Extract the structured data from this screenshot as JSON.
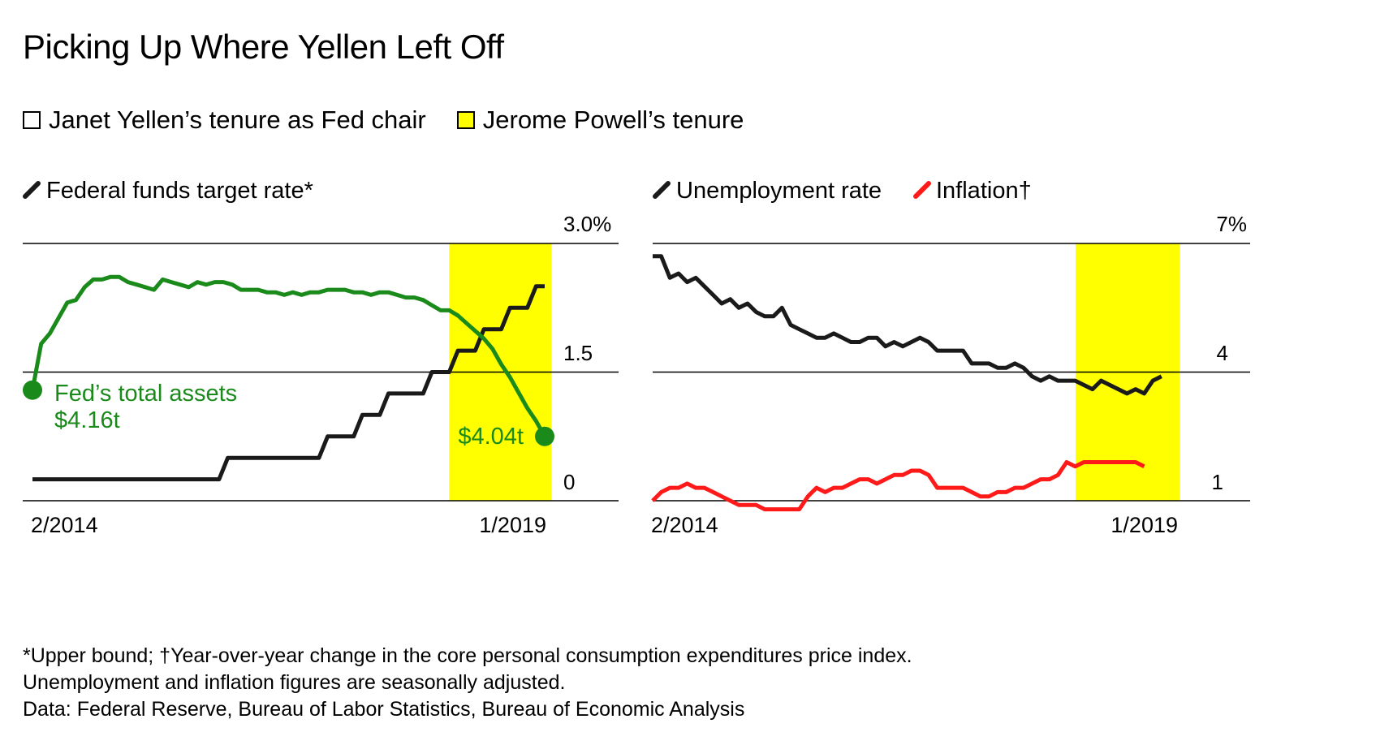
{
  "title": "Picking Up Where Yellen Left Off",
  "legend": [
    {
      "label": "Janet Yellen’s tenure as Fed chair",
      "color": "#ffffff"
    },
    {
      "label": "Jerome Powell’s tenure",
      "color": "#ffff00"
    }
  ],
  "colors": {
    "black": "#1a1a1a",
    "green": "#1a8a1a",
    "red": "#ff1a1a",
    "highlight": "#ffff00",
    "axis": "#000000"
  },
  "chart_data": [
    {
      "type": "line",
      "title": "Federal funds target rate*",
      "x_tick_labels": [
        "2/2014",
        "1/2019"
      ],
      "y_tick_labels": [
        "0",
        "1.5",
        "3.0%"
      ],
      "ylim": [
        0,
        3.0
      ],
      "x_range_months": [
        0,
        59
      ],
      "highlight_months": [
        48,
        60
      ],
      "series": [
        {
          "name": "Federal funds target rate*",
          "color": "#1a1a1a",
          "points": [
            [
              0,
              0.25
            ],
            [
              21.5,
              0.25
            ],
            [
              22.5,
              0.5
            ],
            [
              33,
              0.5
            ],
            [
              34,
              0.75
            ],
            [
              37,
              0.75
            ],
            [
              38,
              1.0
            ],
            [
              40,
              1.0
            ],
            [
              41,
              1.25
            ],
            [
              45,
              1.25
            ],
            [
              46,
              1.5
            ],
            [
              48,
              1.5
            ],
            [
              49,
              1.75
            ],
            [
              51,
              1.75
            ],
            [
              52,
              2.0
            ],
            [
              54,
              2.0
            ],
            [
              55,
              2.25
            ],
            [
              57,
              2.25
            ],
            [
              58,
              2.5
            ],
            [
              59,
              2.5
            ]
          ]
        },
        {
          "name": "Fed’s total assets",
          "color": "#1a8a1a",
          "y_fraction": [
            0.43,
            0.61,
            0.65,
            0.71,
            0.77,
            0.78,
            0.83,
            0.86,
            0.86,
            0.87,
            0.87,
            0.85,
            0.84,
            0.83,
            0.82,
            0.86,
            0.85,
            0.84,
            0.83,
            0.85,
            0.84,
            0.85,
            0.85,
            0.84,
            0.82,
            0.82,
            0.82,
            0.81,
            0.81,
            0.8,
            0.81,
            0.8,
            0.81,
            0.81,
            0.82,
            0.82,
            0.82,
            0.81,
            0.81,
            0.8,
            0.81,
            0.81,
            0.8,
            0.79,
            0.79,
            0.78,
            0.76,
            0.74,
            0.74,
            0.72,
            0.69,
            0.66,
            0.63,
            0.59,
            0.53,
            0.48,
            0.42,
            0.36,
            0.31,
            0.25
          ]
        }
      ],
      "annotations": [
        {
          "lines": [
            "Fed’s total assets",
            "$4.16t"
          ],
          "at": "start"
        },
        {
          "lines": [
            "$4.04t"
          ],
          "at": "end"
        }
      ]
    },
    {
      "type": "line",
      "title": "",
      "x_tick_labels": [
        "2/2014",
        "1/2019"
      ],
      "y_tick_labels": [
        "1",
        "4",
        "7%"
      ],
      "ylim": [
        1,
        7
      ],
      "x_range_months": [
        0,
        61
      ],
      "highlight_months": [
        48,
        60
      ],
      "series": [
        {
          "name": "Unemployment rate",
          "color": "#1a1a1a",
          "values": [
            6.7,
            6.7,
            6.2,
            6.3,
            6.1,
            6.2,
            6.0,
            5.8,
            5.6,
            5.7,
            5.5,
            5.6,
            5.4,
            5.3,
            5.3,
            5.5,
            5.1,
            5.0,
            4.9,
            4.8,
            4.8,
            4.9,
            4.8,
            4.7,
            4.7,
            4.8,
            4.8,
            4.6,
            4.7,
            4.6,
            4.7,
            4.8,
            4.7,
            4.5,
            4.5,
            4.5,
            4.5,
            4.2,
            4.2,
            4.2,
            4.1,
            4.1,
            4.2,
            4.1,
            3.9,
            3.8,
            3.9,
            3.8,
            3.8,
            3.8,
            3.7,
            3.6,
            3.8,
            3.7,
            3.6,
            3.5,
            3.6,
            3.5,
            3.8,
            3.9
          ]
        },
        {
          "name": "Inflation†",
          "color": "#ff1a1a",
          "values": [
            1.0,
            1.2,
            1.3,
            1.3,
            1.4,
            1.3,
            1.3,
            1.2,
            1.1,
            1.0,
            0.9,
            0.9,
            0.9,
            0.8,
            0.8,
            0.8,
            0.8,
            0.8,
            1.1,
            1.3,
            1.2,
            1.3,
            1.3,
            1.4,
            1.5,
            1.5,
            1.4,
            1.5,
            1.6,
            1.6,
            1.7,
            1.7,
            1.6,
            1.3,
            1.3,
            1.3,
            1.3,
            1.2,
            1.1,
            1.1,
            1.2,
            1.2,
            1.3,
            1.3,
            1.4,
            1.5,
            1.5,
            1.6,
            1.9,
            1.8,
            1.9,
            1.9,
            1.9,
            1.9,
            1.9,
            1.9,
            1.9,
            1.8
          ]
        }
      ],
      "annotations": []
    }
  ],
  "left_chart": {
    "legend_label": "Federal funds target rate*"
  },
  "right_chart": {
    "legend_labels": [
      "Unemployment rate",
      "Inflation†"
    ]
  },
  "notes": [
    "*Upper bound; †Year-over-year change in the core personal consumption expenditures price index.",
    "Unemployment and inflation figures are seasonally adjusted.",
    "Data: Federal Reserve, Bureau of Labor Statistics, Bureau of Economic Analysis"
  ]
}
